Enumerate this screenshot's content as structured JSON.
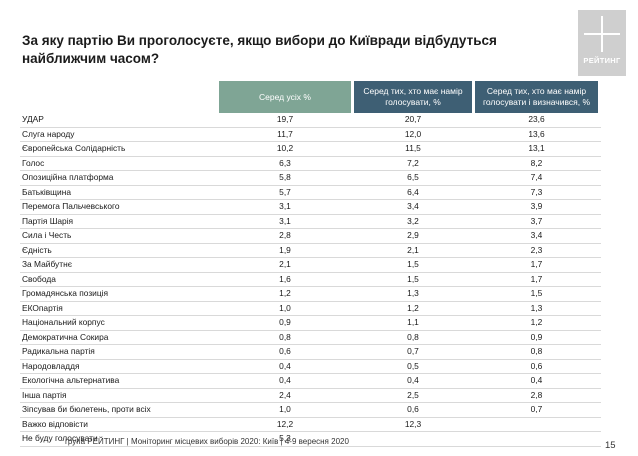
{
  "title": "За яку партію Ви проголосуєте, якщо вибори до Київради відбудуться найближчим часом?",
  "logo_text": "РЕЙТИНГ",
  "columns": [
    "Серед усіх %",
    "Серед тих, хто має намір голосувати, %",
    "Серед тих, хто має намір голосувати і визначився, %"
  ],
  "rows": [
    {
      "label": "УДАР",
      "v1": "19,7",
      "v2": "20,7",
      "v3": "23,6"
    },
    {
      "label": "Слуга народу",
      "v1": "11,7",
      "v2": "12,0",
      "v3": "13,6"
    },
    {
      "label": "Європейська Солідарність",
      "v1": "10,2",
      "v2": "11,5",
      "v3": "13,1"
    },
    {
      "label": "Голос",
      "v1": "6,3",
      "v2": "7,2",
      "v3": "8,2"
    },
    {
      "label": "Опозиційна платформа",
      "v1": "5,8",
      "v2": "6,5",
      "v3": "7,4"
    },
    {
      "label": "Батьківщина",
      "v1": "5,7",
      "v2": "6,4",
      "v3": "7,3"
    },
    {
      "label": "Перемога Пальчевського",
      "v1": "3,1",
      "v2": "3,4",
      "v3": "3,9"
    },
    {
      "label": "Партія Шарія",
      "v1": "3,1",
      "v2": "3,2",
      "v3": "3,7"
    },
    {
      "label": "Сила і Честь",
      "v1": "2,8",
      "v2": "2,9",
      "v3": "3,4"
    },
    {
      "label": "Єдність",
      "v1": "1,9",
      "v2": "2,1",
      "v3": "2,3"
    },
    {
      "label": "За Майбутнє",
      "v1": "2,1",
      "v2": "1,5",
      "v3": "1,7"
    },
    {
      "label": "Свобода",
      "v1": "1,6",
      "v2": "1,5",
      "v3": "1,7"
    },
    {
      "label": "Громадянська позиція",
      "v1": "1,2",
      "v2": "1,3",
      "v3": "1,5"
    },
    {
      "label": "ЕКОпартія",
      "v1": "1,0",
      "v2": "1,2",
      "v3": "1,3"
    },
    {
      "label": "Національний корпус",
      "v1": "0,9",
      "v2": "1,1",
      "v3": "1,2"
    },
    {
      "label": "Демократична Сокира",
      "v1": "0,8",
      "v2": "0,8",
      "v3": "0,9"
    },
    {
      "label": "Радикальна партія",
      "v1": "0,6",
      "v2": "0,7",
      "v3": "0,8"
    },
    {
      "label": "Народовладдя",
      "v1": "0,4",
      "v2": "0,5",
      "v3": "0,6"
    },
    {
      "label": "Екологічна альтернатива",
      "v1": "0,4",
      "v2": "0,4",
      "v3": "0,4"
    },
    {
      "label": "Інша партія",
      "v1": "2,4",
      "v2": "2,5",
      "v3": "2,8"
    },
    {
      "label": "Зіпсував би бюлетень, проти всіх",
      "v1": "1,0",
      "v2": "0,6",
      "v3": "0,7"
    },
    {
      "label": "Важко відповісти",
      "v1": "12,2",
      "v2": "12,3",
      "v3": ""
    },
    {
      "label": "Не буду голосувати",
      "v1": "5,3",
      "v2": "",
      "v3": ""
    }
  ],
  "footer": "група РЕЙТИНГ | Моніторинг місцевих виборів 2020: Київ | 4-9 вересня 2020",
  "page_number": "15"
}
